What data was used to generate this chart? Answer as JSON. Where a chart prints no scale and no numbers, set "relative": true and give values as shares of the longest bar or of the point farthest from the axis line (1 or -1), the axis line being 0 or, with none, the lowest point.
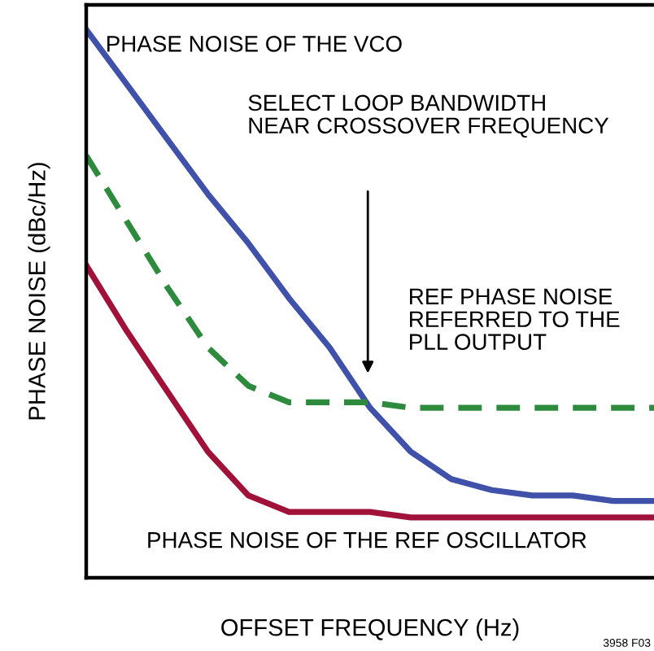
{
  "chart_data": {
    "type": "line",
    "relative": true,
    "xlabel": "OFFSET FREQUENCY (Hz)",
    "ylabel": "PHASE NOISE (dBc/Hz)",
    "categories": [
      null,
      null,
      null,
      null,
      null,
      null,
      null,
      null,
      null,
      null,
      null,
      null,
      null,
      null,
      null
    ],
    "series": [
      {
        "name": "PHASE NOISE OF THE VCO",
        "color": "#3f51a8",
        "line_style": "solid",
        "values": [
          1.0,
          0.9,
          0.8,
          0.7,
          0.61,
          0.51,
          0.42,
          0.31,
          0.23,
          0.18,
          0.16,
          0.15,
          0.15,
          0.14,
          0.14
        ]
      },
      {
        "name": "REF PHASE NOISE\nREFERRED TO THE\nPLL OUTPUT",
        "color": "#2e8b3e",
        "line_style": "dashed",
        "values": [
          0.77,
          0.65,
          0.53,
          0.42,
          0.35,
          0.32,
          0.32,
          0.32,
          0.31,
          0.31,
          0.31,
          0.31,
          0.31,
          0.31,
          0.31
        ]
      },
      {
        "name": "PHASE NOISE OF THE REF OSCILLATOR",
        "color": "#a0123a",
        "line_style": "solid",
        "values": [
          0.57,
          0.45,
          0.34,
          0.23,
          0.15,
          0.12,
          0.12,
          0.12,
          0.11,
          0.11,
          0.11,
          0.11,
          0.11,
          0.11,
          0.11
        ]
      }
    ],
    "annotations": [
      "SELECT LOOP BANDWIDTH\nNEAR CROSSOVER FREQUENCY",
      "3958 F03"
    ],
    "legend": false,
    "marker": "none"
  }
}
